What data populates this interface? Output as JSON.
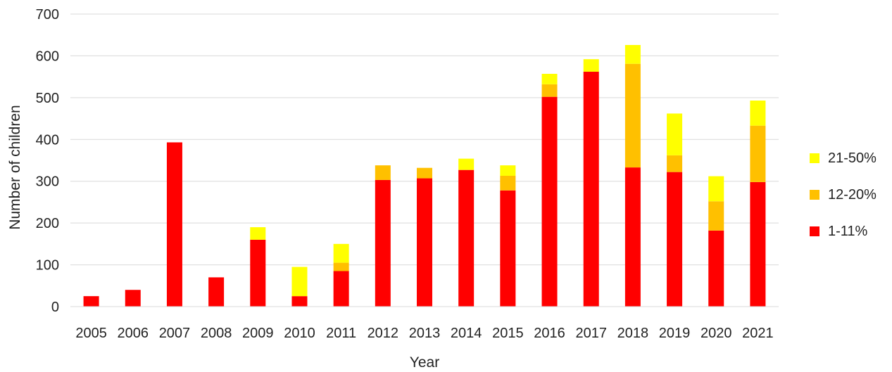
{
  "chart_data": {
    "type": "bar",
    "stacked": true,
    "title": "",
    "xlabel": "Year",
    "ylabel": "Number of children",
    "ylim": [
      0,
      700
    ],
    "yticks": [
      0,
      100,
      200,
      300,
      400,
      500,
      600,
      700
    ],
    "grid": true,
    "legend_position": "right",
    "categories": [
      "2005",
      "2006",
      "2007",
      "2008",
      "2009",
      "2010",
      "2011",
      "2012",
      "2013",
      "2014",
      "2015",
      "2016",
      "2017",
      "2018",
      "2019",
      "2020",
      "2021"
    ],
    "series": [
      {
        "name": "1-11%",
        "color": "#ff0000",
        "values": [
          25,
          40,
          393,
          70,
          160,
          25,
          85,
          303,
          307,
          327,
          278,
          502,
          562,
          333,
          322,
          182,
          298
        ]
      },
      {
        "name": "12-20%",
        "color": "#ffc000",
        "values": [
          0,
          0,
          0,
          0,
          0,
          0,
          20,
          35,
          25,
          0,
          35,
          30,
          0,
          248,
          40,
          70,
          135
        ]
      },
      {
        "name": "21-50%",
        "color": "#ffff00",
        "values": [
          0,
          0,
          0,
          0,
          30,
          70,
          45,
          0,
          0,
          27,
          25,
          25,
          30,
          45,
          100,
          60,
          60
        ]
      }
    ],
    "legend_order": [
      "21-50%",
      "12-20%",
      "1-11%"
    ]
  }
}
